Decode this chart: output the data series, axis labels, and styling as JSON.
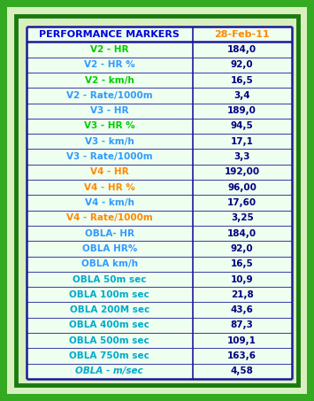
{
  "title_col1": "PERFORMANCE MARKERS",
  "title_col2": "28-Feb-11",
  "rows": [
    {
      "label": "V2 - HR",
      "value": "184,0",
      "label_color": "#00cc00",
      "italic": false
    },
    {
      "label": "V2 - HR %",
      "value": "92,0",
      "label_color": "#3399ff",
      "italic": false
    },
    {
      "label": "V2 - km/h",
      "value": "16,5",
      "label_color": "#00cc00",
      "italic": false
    },
    {
      "label": "V2 - Rate/1000m",
      "value": "3,4",
      "label_color": "#3399ff",
      "italic": false
    },
    {
      "label": "V3 - HR",
      "value": "189,0",
      "label_color": "#3399ff",
      "italic": false
    },
    {
      "label": "V3 - HR %",
      "value": "94,5",
      "label_color": "#00cc00",
      "italic": false
    },
    {
      "label": "V3 - km/h",
      "value": "17,1",
      "label_color": "#3399ff",
      "italic": false
    },
    {
      "label": "V3 - Rate/1000m",
      "value": "3,3",
      "label_color": "#3399ff",
      "italic": false
    },
    {
      "label": "V4 - HR",
      "value": "192,00",
      "label_color": "#ff8800",
      "italic": false
    },
    {
      "label": "V4 - HR %",
      "value": "96,00",
      "label_color": "#ff8800",
      "italic": false
    },
    {
      "label": "V4 - km/h",
      "value": "17,60",
      "label_color": "#3399ff",
      "italic": false
    },
    {
      "label": "V4 - Rate/1000m",
      "value": "3,25",
      "label_color": "#ff8800",
      "italic": false
    },
    {
      "label": "OBLA- HR",
      "value": "184,0",
      "label_color": "#3399ff",
      "italic": false
    },
    {
      "label": "OBLA HR%",
      "value": "92,0",
      "label_color": "#3399ff",
      "italic": false
    },
    {
      "label": "OBLA km/h",
      "value": "16,5",
      "label_color": "#3399ff",
      "italic": false
    },
    {
      "label": "OBLA 50m sec",
      "value": "10,9",
      "label_color": "#00aacc",
      "italic": false
    },
    {
      "label": "OBLA 100m sec",
      "value": "21,8",
      "label_color": "#00aacc",
      "italic": false
    },
    {
      "label": "OBLA 200M sec",
      "value": "43,6",
      "label_color": "#00aacc",
      "italic": false
    },
    {
      "label": "OBLA 400m sec",
      "value": "87,3",
      "label_color": "#00aacc",
      "italic": false
    },
    {
      "label": "OBLA 500m sec",
      "value": "109,1",
      "label_color": "#00aacc",
      "italic": false
    },
    {
      "label": "OBLA 750m sec",
      "value": "163,6",
      "label_color": "#00aacc",
      "italic": false
    },
    {
      "label": "OBLA - m/sec",
      "value": "4,58",
      "label_color": "#00aacc",
      "italic": true
    }
  ],
  "bg_outer": "#33aa22",
  "bg_inner_light": "#d8f0c0",
  "table_bg": "#eefff0",
  "header_bg": "#eefff0",
  "border_color": "#1a1a99",
  "header_label_color": "#0000dd",
  "header_value_color": "#ff8800",
  "value_color": "#000080",
  "title_fontsize": 8.0,
  "row_fontsize": 7.5,
  "figwidth": 3.55,
  "figheight": 4.53,
  "dpi": 100
}
